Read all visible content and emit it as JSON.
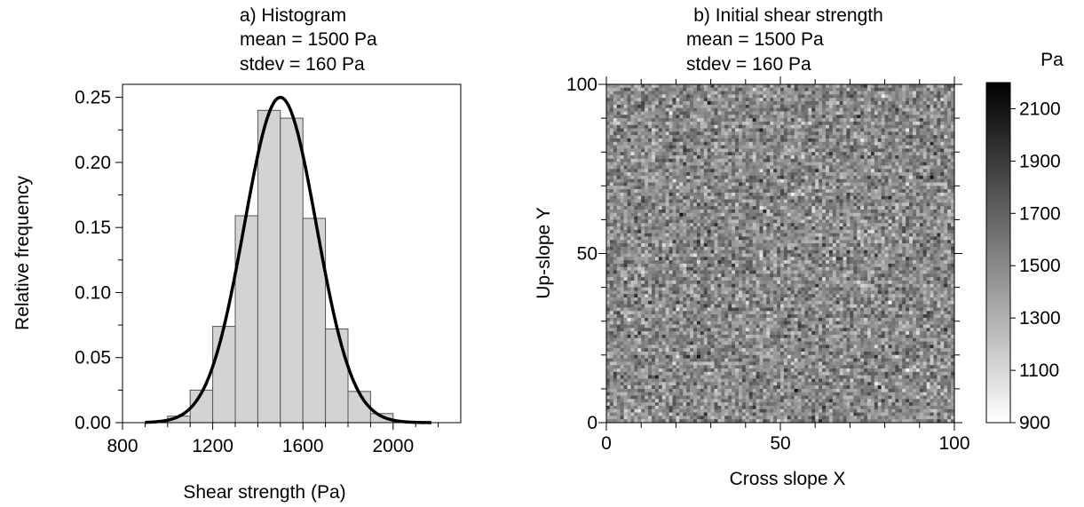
{
  "chart_data": [
    {
      "type": "bar",
      "panel": "a",
      "title": "a) Histogram",
      "subtitle_lines": [
        "mean = 1500 Pa",
        "stdev = 160 Pa"
      ],
      "xlabel": "Shear strength (Pa)",
      "ylabel": "Relative frequency",
      "xlim": [
        800,
        2300
      ],
      "ylim": [
        0,
        0.26
      ],
      "x_ticks": [
        800,
        1200,
        1600,
        2000
      ],
      "y_ticks": [
        0.0,
        0.05,
        0.1,
        0.15,
        0.2,
        0.25
      ],
      "y_tick_labels": [
        "0.00",
        "0.05",
        "0.10",
        "0.15",
        "0.20",
        "0.25"
      ],
      "bin_edges": [
        900,
        1000,
        1100,
        1200,
        1300,
        1400,
        1500,
        1600,
        1700,
        1800,
        1900,
        2000,
        2100
      ],
      "values": [
        0.0,
        0.005,
        0.025,
        0.074,
        0.159,
        0.24,
        0.234,
        0.157,
        0.072,
        0.024,
        0.007,
        0.001
      ],
      "fit_curve": {
        "type": "normal",
        "mean": 1500,
        "stdev": 160,
        "peak": 0.25,
        "x_range": [
          900,
          2170
        ]
      },
      "bar_color": "#d3d3d3",
      "grid": false
    },
    {
      "type": "heatmap",
      "panel": "b",
      "title": "b) Initial shear strength",
      "subtitle_lines": [
        "mean = 1500 Pa",
        "stdev = 160 Pa"
      ],
      "xlabel": "Cross slope X",
      "ylabel": "Up-slope Y",
      "xlim": [
        0,
        100
      ],
      "ylim": [
        0,
        100
      ],
      "x_ticks": [
        0,
        50,
        100
      ],
      "y_ticks": [
        0,
        50,
        100
      ],
      "grid_size": 100,
      "field_mean": 1500,
      "field_stdev": 160,
      "colorbar": {
        "label": "Pa",
        "range": [
          900,
          2200
        ],
        "ticks": [
          900,
          1100,
          1300,
          1500,
          1700,
          1900,
          2100
        ],
        "low_color": "#ffffff",
        "high_color": "#000000"
      }
    }
  ]
}
